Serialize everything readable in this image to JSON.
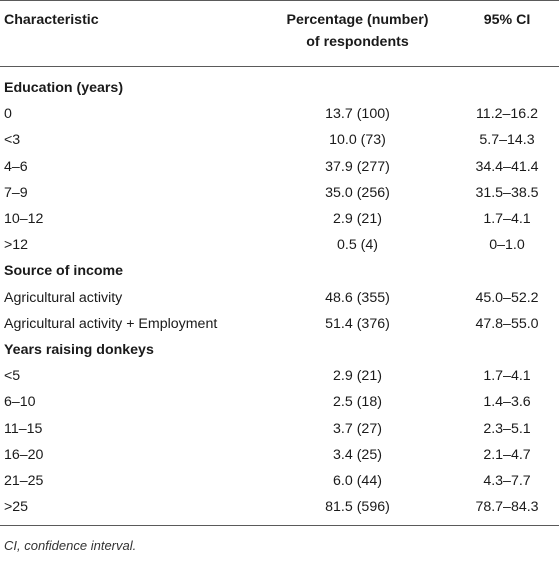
{
  "header": {
    "col1": "Characteristic",
    "col2_line1": "Percentage (number)",
    "col2_line2": "of respondents",
    "col3": "95% CI"
  },
  "sections": [
    {
      "title": "Education (years)",
      "rows": [
        {
          "label": "0",
          "pct": "13.7 (100)",
          "ci": "11.2–16.2"
        },
        {
          "label": "<3",
          "pct": "10.0 (73)",
          "ci": "5.7–14.3"
        },
        {
          "label": "4–6",
          "pct": "37.9 (277)",
          "ci": "34.4–41.4"
        },
        {
          "label": "7–9",
          "pct": "35.0 (256)",
          "ci": "31.5–38.5"
        },
        {
          "label": "10–12",
          "pct": "2.9 (21)",
          "ci": "1.7–4.1"
        },
        {
          "label": ">12",
          "pct": "0.5 (4)",
          "ci": "0–1.0"
        }
      ]
    },
    {
      "title": "Source of income",
      "rows": [
        {
          "label": "Agricultural activity",
          "pct": "48.6 (355)",
          "ci": "45.0–52.2"
        },
        {
          "label": "Agricultural activity + Employment",
          "pct": "51.4 (376)",
          "ci": "47.8–55.0"
        }
      ]
    },
    {
      "title": "Years raising donkeys",
      "rows": [
        {
          "label": "<5",
          "pct": "2.9 (21)",
          "ci": "1.7–4.1"
        },
        {
          "label": "6–10",
          "pct": "2.5 (18)",
          "ci": "1.4–3.6"
        },
        {
          "label": "11–15",
          "pct": "3.7 (27)",
          "ci": "2.3–5.1"
        },
        {
          "label": "16–20",
          "pct": "3.4 (25)",
          "ci": "2.1–4.7"
        },
        {
          "label": "21–25",
          "pct": "6.0 (44)",
          "ci": "4.3–7.7"
        },
        {
          "label": ">25",
          "pct": "81.5 (596)",
          "ci": "78.7–84.3"
        }
      ]
    }
  ],
  "footnote": "CI, confidence interval."
}
